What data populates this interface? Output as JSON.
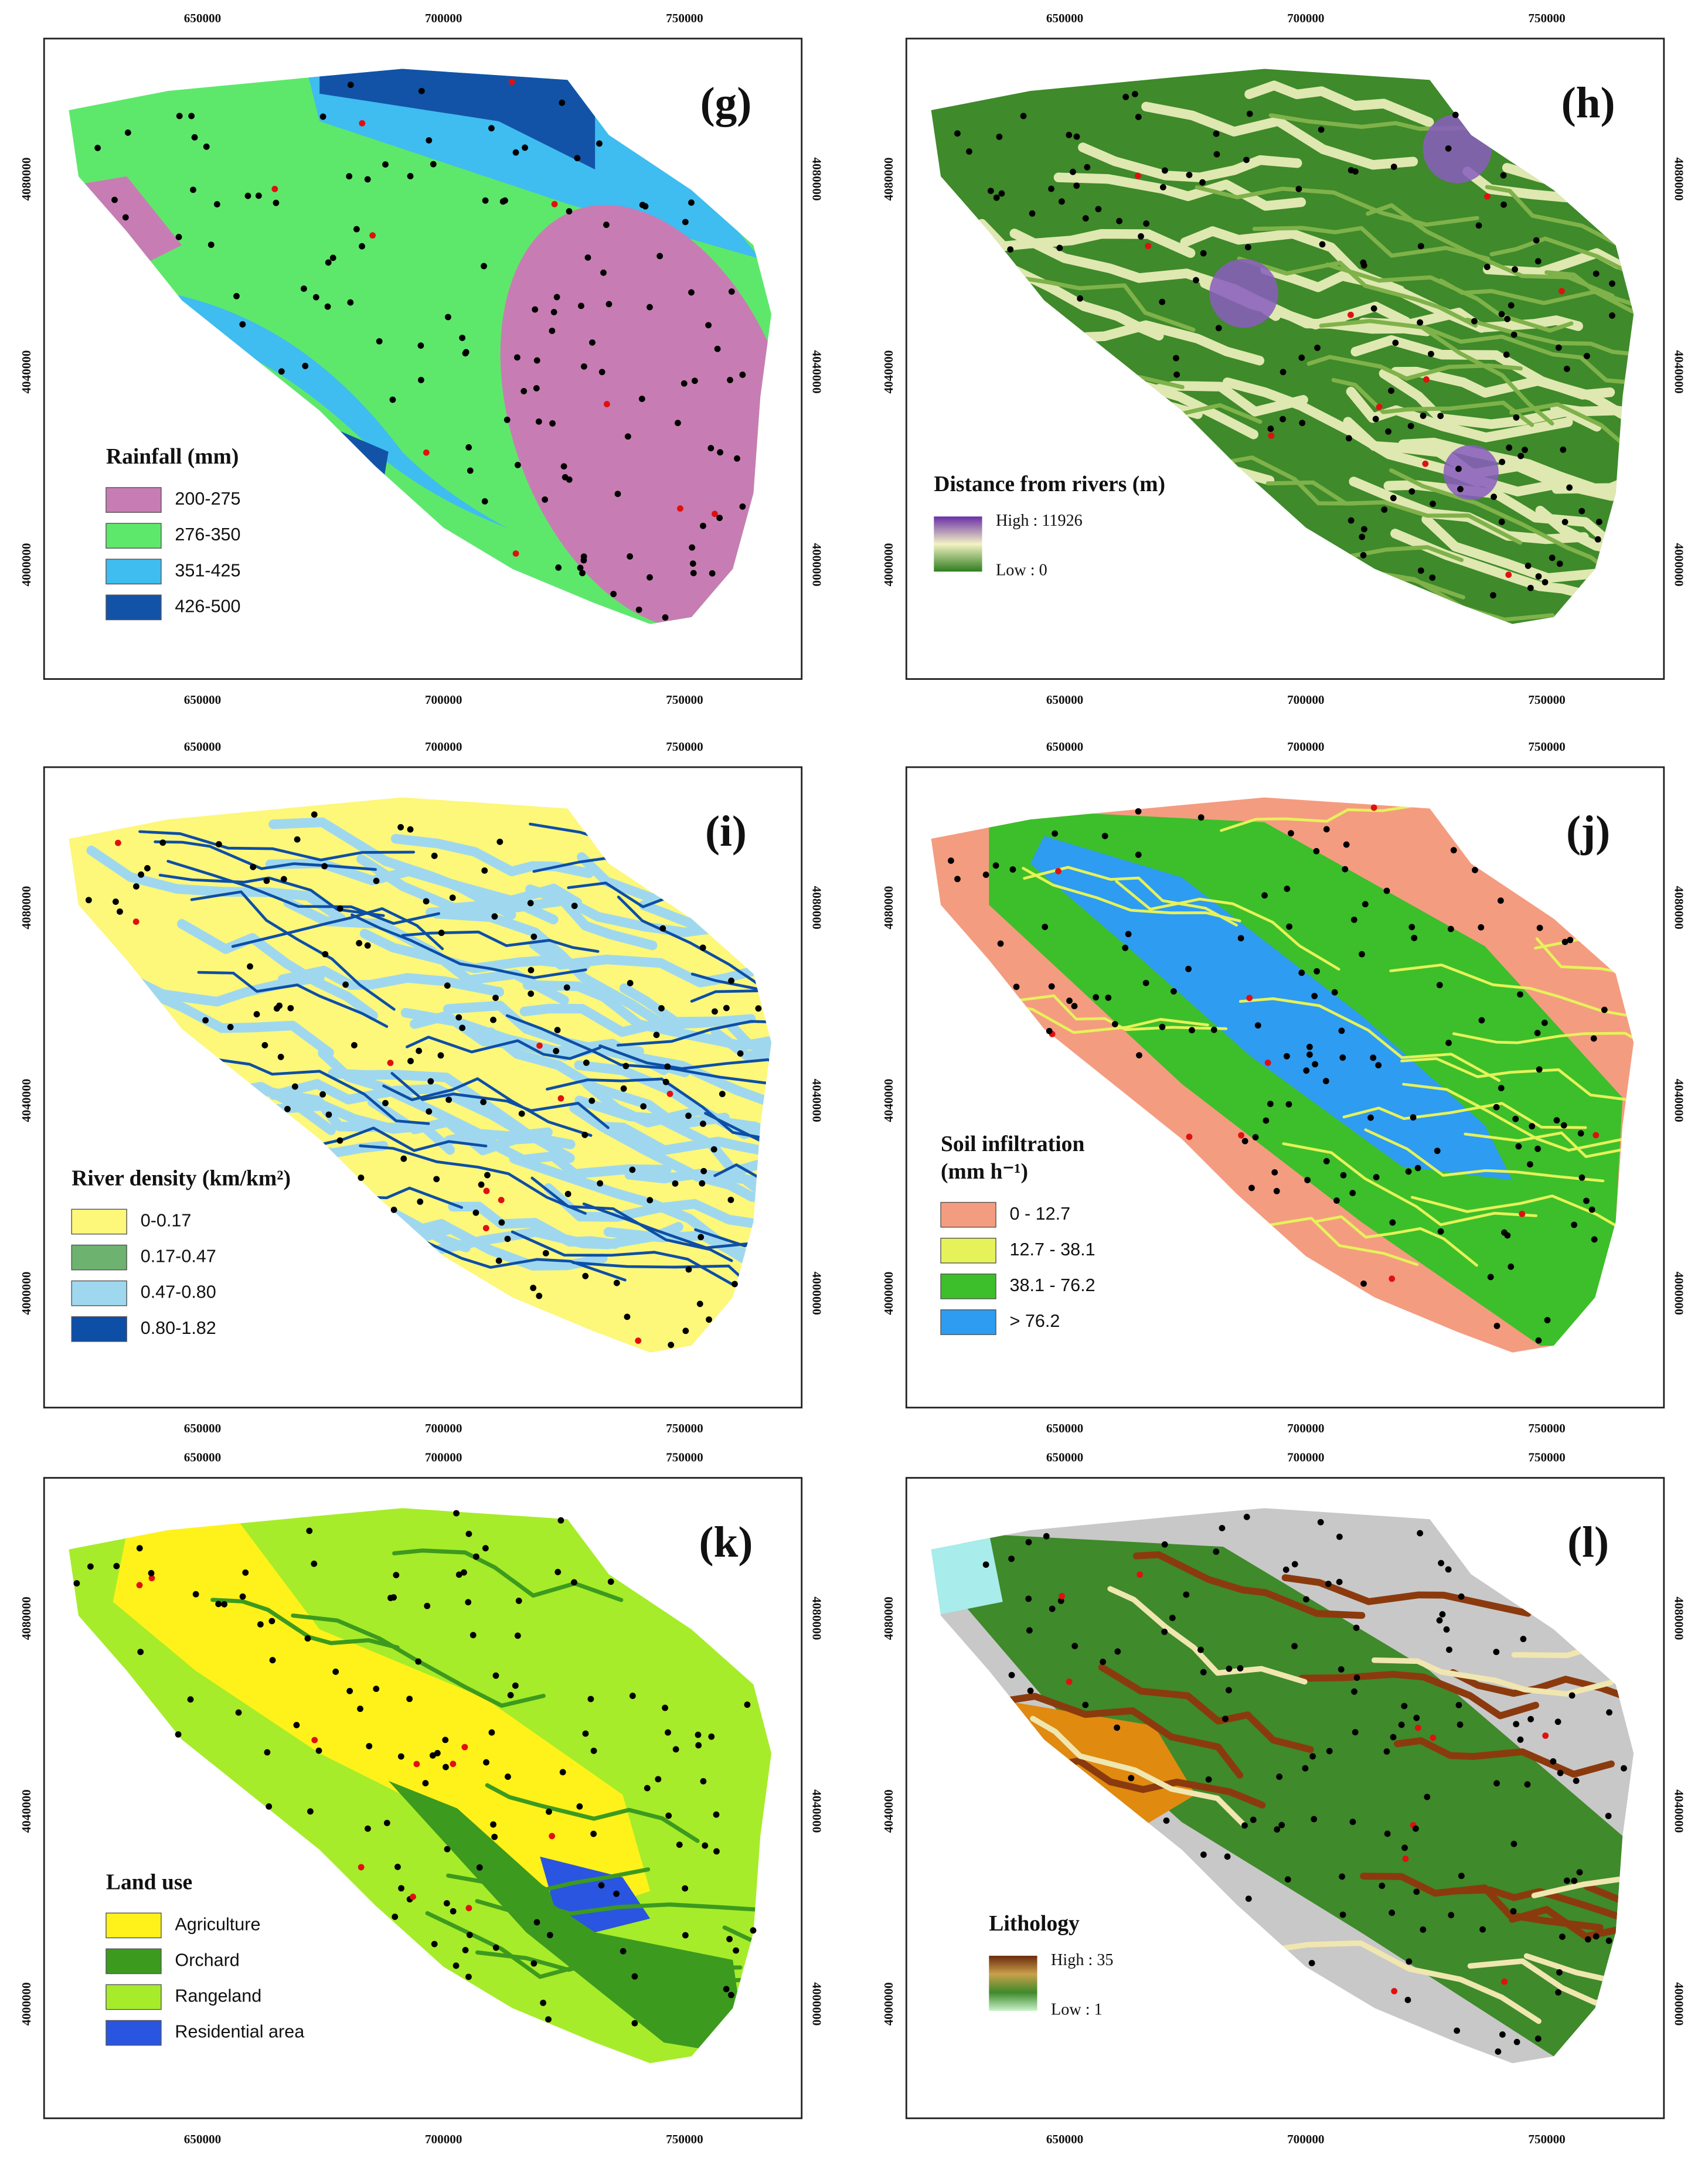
{
  "x_ticks": [
    650000,
    700000,
    750000
  ],
  "y_ticks": [
    4080000,
    4040000,
    4000000
  ],
  "panels": [
    {
      "label": "(g)",
      "legend_title": [
        "Rainfall (mm)"
      ],
      "legend": [
        {
          "label": "200-275",
          "color": "#c77db3"
        },
        {
          "label": "276-350",
          "color": "#5ee86b"
        },
        {
          "label": "351-425",
          "color": "#3fbcf0"
        },
        {
          "label": "426-500",
          "color": "#1253a8"
        }
      ]
    },
    {
      "label": "(h)",
      "legend_title": [
        "Distance from rivers (m)"
      ],
      "legend_high": "High : 11926",
      "legend_low": "Low : 0",
      "gradient": [
        "#6a2fa8",
        "#f3f2c4",
        "#2f7d1e"
      ]
    },
    {
      "label": "(i)",
      "legend_title": [
        "River density (km/km²)"
      ],
      "legend": [
        {
          "label": "0-0.17",
          "color": "#fdf77a"
        },
        {
          "label": "0.17-0.47",
          "color": "#6db26f"
        },
        {
          "label": "0.47-0.80",
          "color": "#9fd8ee"
        },
        {
          "label": "0.80-1.82",
          "color": "#0d4ea6"
        }
      ]
    },
    {
      "label": "(j)",
      "legend_title": [
        "Soil infiltration",
        "(mm h⁻¹)"
      ],
      "legend": [
        {
          "label": "0 - 12.7",
          "color": "#f49c80"
        },
        {
          "label": "12.7 - 38.1",
          "color": "#e6f25a"
        },
        {
          "label": "38.1 - 76.2",
          "color": "#3cbf2a"
        },
        {
          "label": "> 76.2",
          "color": "#2e9cf0"
        }
      ]
    },
    {
      "label": "(k)",
      "legend_title": [
        "Land use"
      ],
      "legend": [
        {
          "label": "Agriculture",
          "color": "#fff21a"
        },
        {
          "label": "Orchard",
          "color": "#3c9a1e"
        },
        {
          "label": "Rangeland",
          "color": "#a6ec2a"
        },
        {
          "label": "Residential area",
          "color": "#2a55e0"
        }
      ]
    },
    {
      "label": "(l)",
      "legend_title": [
        "Lithology"
      ],
      "legend_high": "High : 35",
      "legend_low": "Low : 1",
      "gradient": [
        "#6b2a0c",
        "#c9a04a",
        "#3f8a2a",
        "#c9f2c9"
      ]
    }
  ]
}
